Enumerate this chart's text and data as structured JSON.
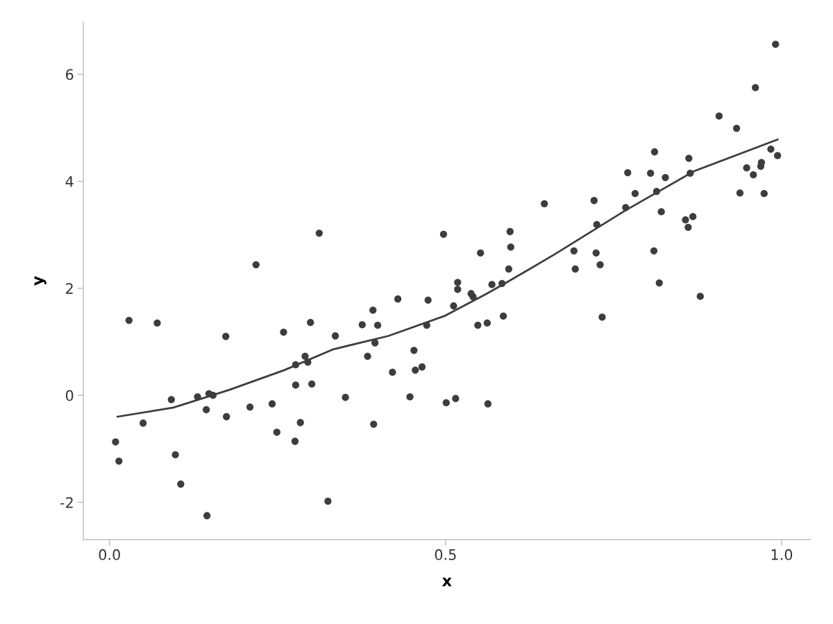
{
  "chart_data": {
    "type": "scatter",
    "xlabel": "x",
    "ylabel": "y",
    "xlim": [
      -0.039,
      1.043
    ],
    "ylim": [
      -2.7,
      6.98
    ],
    "xticks": [
      {
        "value": 0,
        "label": "0.0"
      },
      0.5,
      {
        "value": 1,
        "label": "1.0"
      }
    ],
    "yticks": [
      -2,
      0,
      2,
      4,
      6
    ],
    "grid": false,
    "legend": false,
    "marker": "circle",
    "series": [
      {
        "color": "#3d3d3d",
        "x": [
          0.009,
          0.014,
          0.029,
          0.05,
          0.071,
          0.092,
          0.098,
          0.106,
          0.131,
          0.144,
          0.145,
          0.148,
          0.154,
          0.173,
          0.174,
          0.209,
          0.218,
          0.242,
          0.249,
          0.259,
          0.276,
          0.277,
          0.277,
          0.284,
          0.291,
          0.295,
          0.299,
          0.301,
          0.312,
          0.325,
          0.336,
          0.351,
          0.376,
          0.384,
          0.392,
          0.393,
          0.395,
          0.399,
          0.421,
          0.429,
          0.447,
          0.453,
          0.455,
          0.465,
          0.472,
          0.474,
          0.497,
          0.501,
          0.512,
          0.515,
          0.518,
          0.518,
          0.538,
          0.541,
          0.548,
          0.552,
          0.562,
          0.563,
          0.569,
          0.584,
          0.586,
          0.594,
          0.596,
          0.597,
          0.647,
          0.691,
          0.693,
          0.721,
          0.725,
          0.724,
          0.73,
          0.733,
          0.768,
          0.771,
          0.782,
          0.805,
          0.81,
          0.811,
          0.814,
          0.818,
          0.821,
          0.827,
          0.857,
          0.861,
          0.862,
          0.864,
          0.868,
          0.879,
          0.907,
          0.933,
          0.938,
          0.948,
          0.958,
          0.961,
          0.969,
          0.97,
          0.974,
          0.984,
          0.991,
          0.994
        ],
        "values": [
          -0.87,
          -1.23,
          1.4,
          -0.52,
          1.35,
          -0.08,
          -1.11,
          -1.66,
          -0.03,
          -0.27,
          -2.25,
          0.03,
          0.0,
          1.1,
          -0.4,
          -0.22,
          2.44,
          -0.16,
          -0.69,
          1.18,
          -0.86,
          0.57,
          0.19,
          -0.51,
          0.73,
          0.62,
          1.36,
          0.21,
          3.03,
          -1.98,
          1.11,
          -0.04,
          1.32,
          0.73,
          1.59,
          -0.54,
          0.98,
          1.31,
          0.43,
          1.8,
          -0.03,
          0.84,
          0.47,
          0.53,
          1.31,
          1.78,
          3.01,
          -0.14,
          1.67,
          -0.06,
          2.11,
          1.98,
          1.9,
          1.84,
          1.31,
          2.66,
          1.35,
          -0.16,
          2.07,
          2.09,
          1.48,
          2.36,
          3.06,
          2.77,
          3.58,
          2.7,
          2.36,
          3.64,
          3.19,
          2.66,
          2.44,
          1.46,
          3.51,
          4.16,
          3.77,
          4.15,
          2.7,
          4.55,
          3.81,
          2.1,
          3.43,
          4.07,
          3.28,
          3.14,
          4.43,
          4.15,
          3.34,
          1.85,
          5.22,
          4.99,
          3.78,
          4.25,
          4.12,
          5.75,
          4.28,
          4.35,
          3.77,
          4.6,
          6.56,
          4.48
        ]
      },
      {
        "type": "line",
        "color": "#3d3d3d",
        "marker": "none",
        "line_style": "solid",
        "x": [
          0.012,
          0.095,
          0.178,
          0.26,
          0.333,
          0.415,
          0.498,
          0.56,
          0.591,
          0.663,
          0.767,
          0.87,
          0.994
        ],
        "values": [
          -0.4,
          -0.23,
          0.1,
          0.47,
          0.86,
          1.11,
          1.48,
          1.89,
          2.11,
          2.64,
          3.45,
          4.19,
          4.78
        ]
      }
    ]
  }
}
